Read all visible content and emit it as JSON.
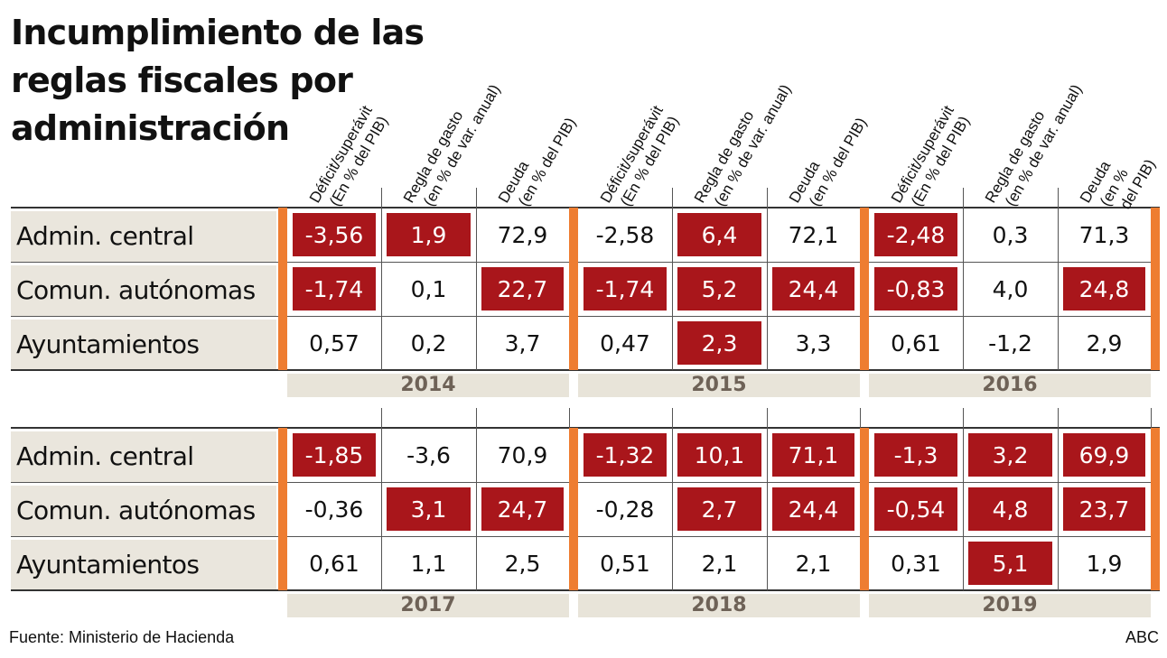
{
  "title": "Incumplimiento de las reglas fiscales por administración",
  "source": "Fuente: Ministerio de Hacienda",
  "credit": "ABC",
  "colors": {
    "highlight": "#a9161b",
    "accent_bar": "#ee7d31",
    "row_label_bg": "#eae6dd",
    "year_bar_bg": "#e8e4d9",
    "year_text": "#6e6257"
  },
  "chart_data": {
    "type": "table",
    "title": "Incumplimiento de las reglas fiscales por administración",
    "headers_long": [
      [
        "Déficit/superávit",
        "(En % del PIB)"
      ],
      [
        "Regla de gasto",
        "(en % de var. anual)"
      ],
      [
        "Deuda",
        "(en % del PIB)"
      ]
    ],
    "headers_short": [
      [
        "Déficit/superávit",
        "(En % del PIB)"
      ],
      [
        "Regla de gasto",
        "(en % de var. anual)"
      ],
      [
        "Deuda",
        "(en %",
        "del PIB)"
      ]
    ],
    "rows": [
      "Admin. central",
      "Comun. autónomas",
      "Ayuntamientos"
    ],
    "years": [
      {
        "year": "2014",
        "values": [
          [
            "-3,56",
            "1,9",
            "72,9"
          ],
          [
            "-1,74",
            "0,1",
            "22,7"
          ],
          [
            "0,57",
            "0,2",
            "3,7"
          ]
        ],
        "breach": [
          [
            true,
            true,
            false
          ],
          [
            true,
            false,
            true
          ],
          [
            false,
            false,
            false
          ]
        ]
      },
      {
        "year": "2015",
        "values": [
          [
            "-2,58",
            "6,4",
            "72,1"
          ],
          [
            "-1,74",
            "5,2",
            "24,4"
          ],
          [
            "0,47",
            "2,3",
            "3,3"
          ]
        ],
        "breach": [
          [
            false,
            true,
            false
          ],
          [
            true,
            true,
            true
          ],
          [
            false,
            true,
            false
          ]
        ]
      },
      {
        "year": "2016",
        "values": [
          [
            "-2,48",
            "0,3",
            "71,3"
          ],
          [
            "-0,83",
            "4,0",
            "24,8"
          ],
          [
            "0,61",
            "-1,2",
            "2,9"
          ]
        ],
        "breach": [
          [
            true,
            false,
            false
          ],
          [
            true,
            false,
            true
          ],
          [
            false,
            false,
            false
          ]
        ]
      },
      {
        "year": "2017",
        "values": [
          [
            "-1,85",
            "-3,6",
            "70,9"
          ],
          [
            "-0,36",
            "3,1",
            "24,7"
          ],
          [
            "0,61",
            "1,1",
            "2,5"
          ]
        ],
        "breach": [
          [
            true,
            false,
            false
          ],
          [
            false,
            true,
            true
          ],
          [
            false,
            false,
            false
          ]
        ]
      },
      {
        "year": "2018",
        "values": [
          [
            "-1,32",
            "10,1",
            "71,1"
          ],
          [
            "-0,28",
            "2,7",
            "24,4"
          ],
          [
            "0,51",
            "2,1",
            "2,1"
          ]
        ],
        "breach": [
          [
            true,
            true,
            true
          ],
          [
            false,
            true,
            true
          ],
          [
            false,
            false,
            false
          ]
        ]
      },
      {
        "year": "2019",
        "values": [
          [
            "-1,3",
            "3,2",
            "69,9"
          ],
          [
            "-0,54",
            "4,8",
            "23,7"
          ],
          [
            "0,31",
            "5,1",
            "1,9"
          ]
        ],
        "breach": [
          [
            true,
            true,
            true
          ],
          [
            true,
            true,
            true
          ],
          [
            false,
            true,
            false
          ]
        ]
      }
    ]
  }
}
